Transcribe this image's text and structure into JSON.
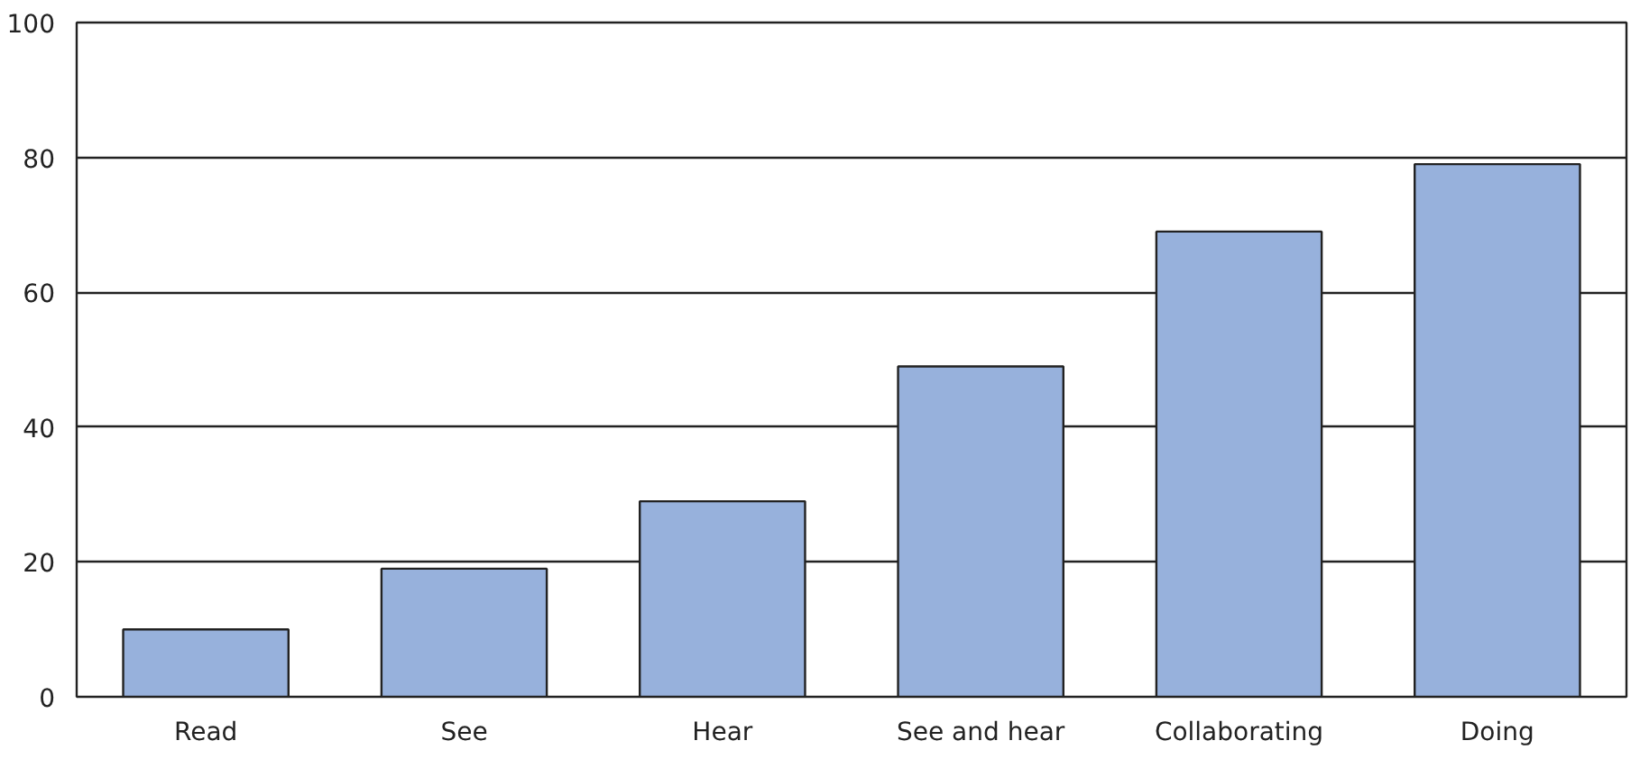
{
  "chart_data": {
    "type": "bar",
    "categories": [
      "Read",
      "See",
      "Hear",
      "See and hear",
      "Collaborating",
      "Doing"
    ],
    "values": [
      10,
      19,
      29,
      49,
      69,
      79
    ],
    "color": "#97b1dc",
    "ylim": [
      0,
      100
    ],
    "yticks": [
      0,
      20,
      40,
      60,
      80,
      100
    ],
    "grid": "y"
  }
}
